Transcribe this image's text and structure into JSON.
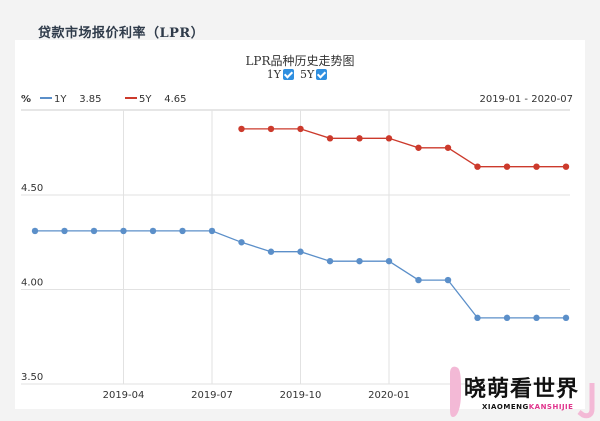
{
  "header": {
    "title": "贷款市场报价利率（LPR）"
  },
  "chart_title": "LPR品种历史走势图",
  "toggles": [
    {
      "label": "1Y",
      "checked": true
    },
    {
      "label": "5Y",
      "checked": true
    }
  ],
  "unit": "%",
  "legend": [
    {
      "name": "1Y",
      "latest": "3.85",
      "color": "#5b8fc9"
    },
    {
      "name": "5Y",
      "latest": "4.65",
      "color": "#cc3a2c"
    }
  ],
  "range_label": "2019-01 - 2020-07",
  "watermark": {
    "text": "晓萌看世界",
    "sub_a": "XIAOMENG",
    "sub_b": "KANSHIJIE"
  },
  "chart_data": {
    "type": "line",
    "x": [
      "2019-01",
      "2019-02",
      "2019-03",
      "2019-04",
      "2019-05",
      "2019-06",
      "2019-07",
      "2019-08",
      "2019-09",
      "2019-10",
      "2019-11",
      "2019-12",
      "2020-01",
      "2020-02",
      "2020-03",
      "2020-04",
      "2020-05",
      "2020-06",
      "2020-07"
    ],
    "series": [
      {
        "name": "1Y",
        "values": [
          4.31,
          4.31,
          4.31,
          4.31,
          4.31,
          4.31,
          4.31,
          4.25,
          4.2,
          4.2,
          4.15,
          4.15,
          4.15,
          4.05,
          4.05,
          3.85,
          3.85,
          3.85,
          3.85
        ]
      },
      {
        "name": "5Y",
        "values": [
          null,
          null,
          null,
          null,
          null,
          null,
          null,
          4.85,
          4.85,
          4.85,
          4.8,
          4.8,
          4.8,
          4.75,
          4.75,
          4.65,
          4.65,
          4.65,
          4.65
        ]
      }
    ],
    "xticks": [
      "2019-04",
      "2019-07",
      "2019-10",
      "2020-01"
    ],
    "yticks": [
      "3.50",
      "4.00",
      "4.50"
    ],
    "ylim": [
      3.5,
      4.95
    ],
    "grid": true
  }
}
